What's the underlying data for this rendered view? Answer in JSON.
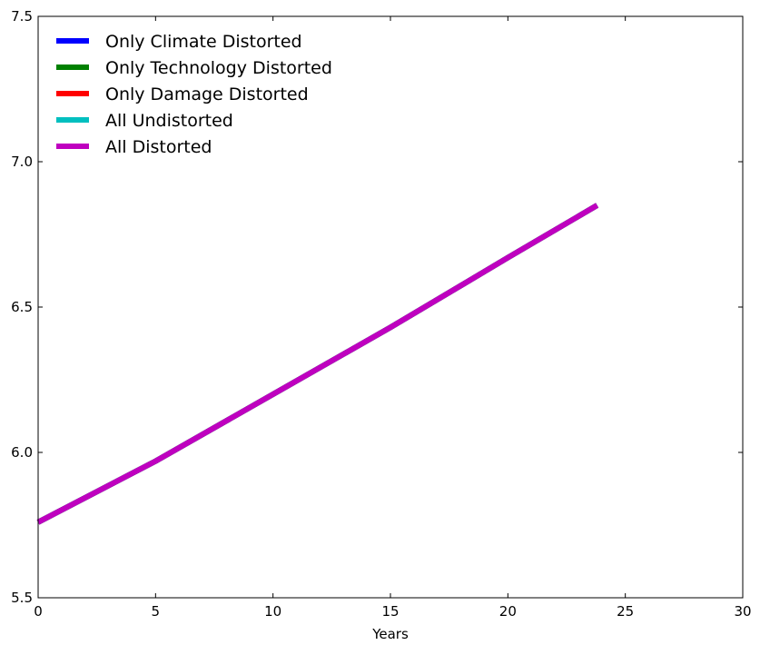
{
  "chart_data": {
    "type": "line",
    "xlabel": "Years",
    "ylabel": "",
    "xlim": [
      0,
      30
    ],
    "ylim": [
      5.5,
      7.5
    ],
    "xticks": [
      "0",
      "5",
      "10",
      "15",
      "20",
      "25",
      "30"
    ],
    "yticks": [
      "5.5",
      "6.0",
      "6.5",
      "7.0",
      "7.5"
    ],
    "grid": false,
    "legend_position": "top-left",
    "series": [
      {
        "name": "Only Climate Distorted",
        "color": "#0000ff",
        "x": [
          0,
          5,
          10,
          15,
          20,
          23.8
        ],
        "y": [
          5.76,
          5.97,
          6.2,
          6.43,
          6.67,
          6.85
        ]
      },
      {
        "name": "Only Technology Distorted",
        "color": "#008000",
        "x": [
          0,
          5,
          10,
          15,
          20,
          23.8
        ],
        "y": [
          5.76,
          5.97,
          6.2,
          6.43,
          6.67,
          6.85
        ]
      },
      {
        "name": "Only Damage Distorted",
        "color": "#ff0000",
        "x": [
          0,
          5,
          10,
          15,
          20,
          23.8
        ],
        "y": [
          5.76,
          5.97,
          6.2,
          6.43,
          6.67,
          6.85
        ]
      },
      {
        "name": "All Undistorted",
        "color": "#00bfbf",
        "x": [
          0,
          5,
          10,
          15,
          20,
          23.8
        ],
        "y": [
          5.76,
          5.97,
          6.2,
          6.43,
          6.67,
          6.85
        ]
      },
      {
        "name": "All Distorted",
        "color": "#bf00bf",
        "x": [
          0,
          5,
          10,
          15,
          20,
          23.8
        ],
        "y": [
          5.76,
          5.97,
          6.2,
          6.43,
          6.67,
          6.85
        ]
      }
    ]
  }
}
